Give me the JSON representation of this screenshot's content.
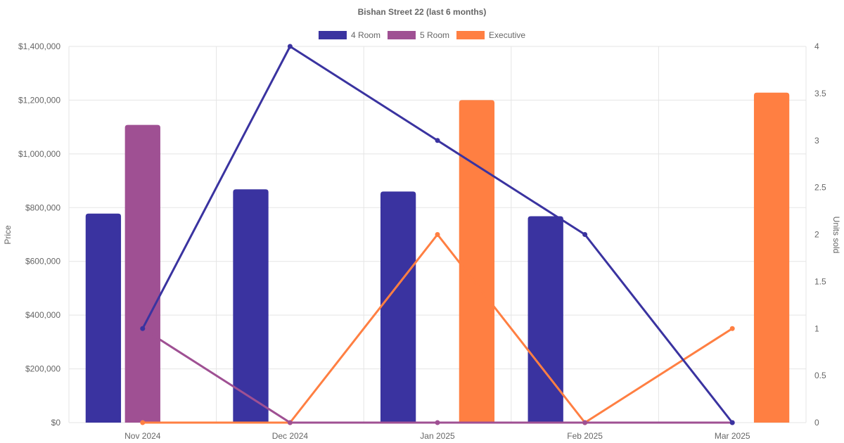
{
  "chart_data": {
    "type": "bar",
    "title": "Bishan Street 22 (last 6 months)",
    "categories": [
      "Nov 2024",
      "Dec 2024",
      "Jan 2025",
      "Feb 2025",
      "Mar 2025"
    ],
    "ylabel": "Price",
    "y2label": "Units sold",
    "ylim": [
      0,
      1400000
    ],
    "y2lim": [
      0,
      4
    ],
    "yticks": [
      "$0",
      "$200,000",
      "$400,000",
      "$600,000",
      "$800,000",
      "$1,000,000",
      "$1,200,000",
      "$1,400,000"
    ],
    "y2ticks": [
      "0",
      "0.5",
      "1",
      "1.5",
      "2",
      "2.5",
      "3",
      "3.5",
      "4"
    ],
    "legend_position": "top",
    "grid": true,
    "series": [
      {
        "name": "4 Room",
        "color": "#3a33a0",
        "price": [
          778000,
          868000,
          860000,
          768000,
          null
        ],
        "units": [
          1,
          4,
          3,
          2,
          0
        ]
      },
      {
        "name": "5 Room",
        "color": "#9f5093",
        "price": [
          1108000,
          null,
          null,
          null,
          null
        ],
        "units": [
          1,
          0,
          0,
          0,
          0
        ]
      },
      {
        "name": "Executive",
        "color": "#ff7f42",
        "price": [
          null,
          null,
          1200000,
          null,
          1228000
        ],
        "units": [
          0,
          0,
          2,
          0,
          1
        ]
      }
    ]
  }
}
